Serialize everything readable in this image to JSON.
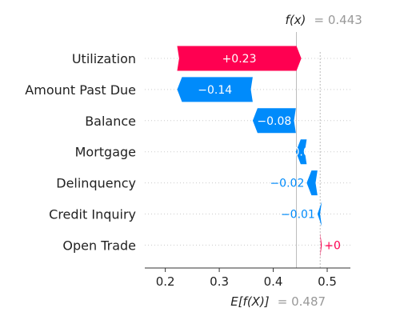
{
  "chart_data": {
    "type": "waterfall",
    "base_value": 0.487,
    "output_value": 0.443,
    "features": [
      {
        "name": "Utilization",
        "value": 0.23,
        "label": "+0.23",
        "label_position": "inside"
      },
      {
        "name": "Amount Past Due",
        "value": -0.14,
        "label": "−0.14",
        "label_position": "inside"
      },
      {
        "name": "Balance",
        "value": -0.08,
        "label": "−0.08",
        "label_position": "inside"
      },
      {
        "name": "Mortgage",
        "value": -0.02,
        "label": "0.0",
        "label_position": "inside"
      },
      {
        "name": "Delinquency",
        "value": -0.02,
        "label": "−0.02",
        "label_position": "outside"
      },
      {
        "name": "Credit Inquiry",
        "value": -0.008,
        "label": "−0.01",
        "label_position": "outside"
      },
      {
        "name": "Open Trade",
        "value": 0.003,
        "label": "+0",
        "label_position": "outside"
      }
    ],
    "xticks": [
      "0.2",
      "0.3",
      "0.4",
      "0.5"
    ],
    "xlim": [
      0.162,
      0.543
    ],
    "fx": {
      "name": "f(x)",
      "value_text": "= 0.443"
    },
    "efx": {
      "name": "E[f(X)]",
      "value_text": "= 0.487"
    },
    "colors": {
      "positive": "#ff0051",
      "negative": "#008bfb",
      "positive_label": "#ff0051",
      "negative_label": "#008bfb"
    }
  }
}
